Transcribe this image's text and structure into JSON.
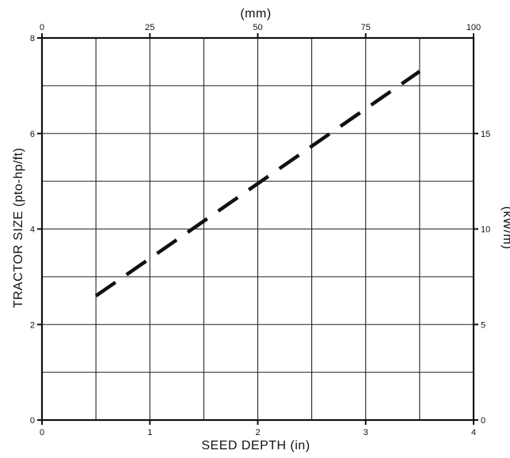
{
  "chart_data": {
    "type": "line",
    "xlabel": "SEED DEPTH (in)",
    "ylabel": "TRACTOR SIZE (pto-hp/ft)",
    "x2label": "(mm)",
    "y2label": "(kW/m)",
    "xlim": [
      0,
      4
    ],
    "ylim": [
      0,
      8
    ],
    "x2lim": [
      0,
      100
    ],
    "y2lim": [
      0,
      20
    ],
    "x_ticks": [
      "0",
      "1",
      "2",
      "3",
      "4"
    ],
    "y_ticks": [
      "0",
      "2",
      "4",
      "6",
      "8"
    ],
    "x2_ticks": [
      "0",
      "25",
      "50",
      "75",
      "100"
    ],
    "y2_ticks": [
      "0",
      "5",
      "10",
      "15"
    ],
    "grid": true,
    "series": [
      {
        "x": [
          0.5,
          3.5
        ],
        "y": [
          2.6,
          7.3
        ],
        "style": "dashed",
        "color": "#111111"
      }
    ]
  }
}
